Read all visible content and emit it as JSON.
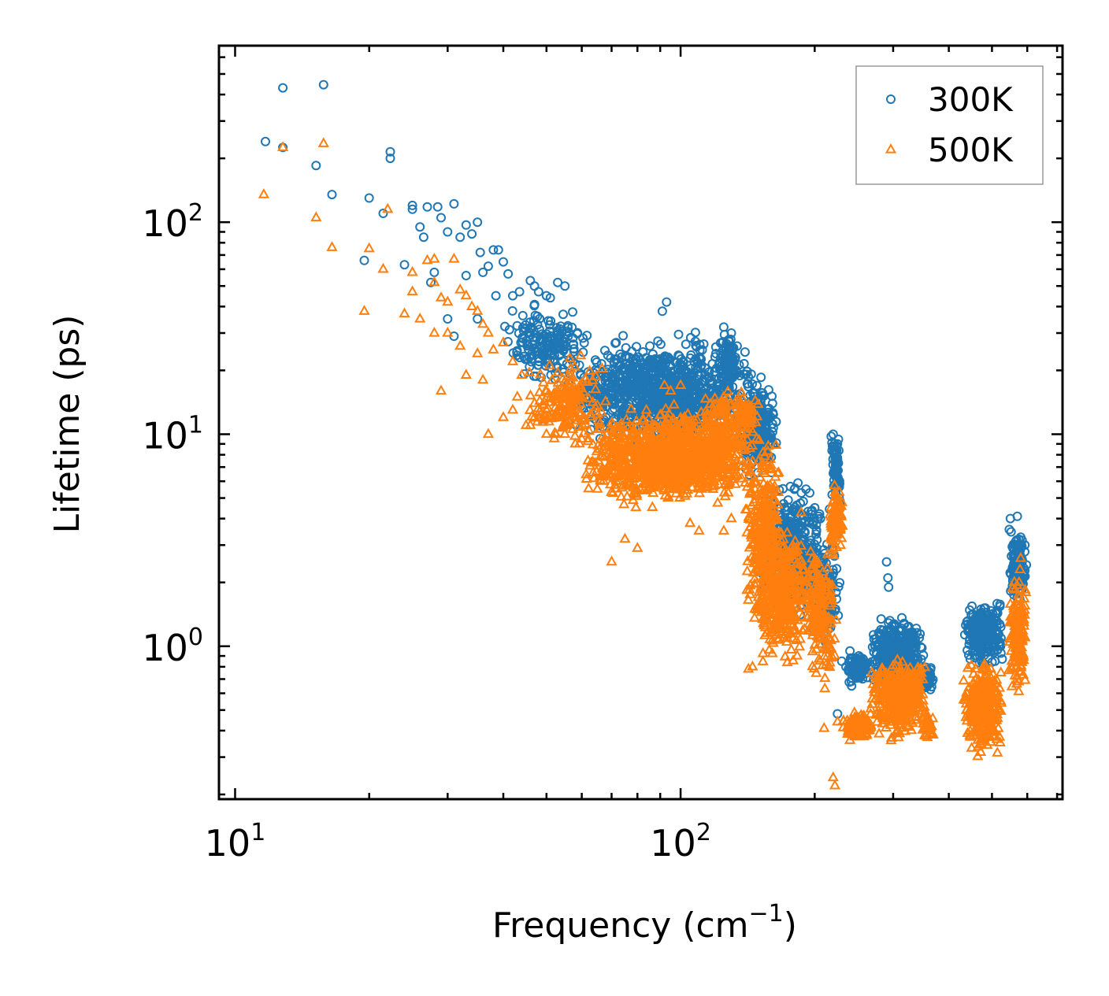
{
  "chart_data": {
    "type": "scatter",
    "title": "",
    "xlabel": "Frequency (cm",
    "xlabel_sup": "−1",
    "xlabel_end": ")",
    "ylabel": "Lifetime (ps)",
    "xscale": "log",
    "yscale": "log",
    "xlim": [
      9.2,
      720
    ],
    "ylim": [
      0.19,
      680
    ],
    "x_ticks": [
      {
        "value": 10,
        "base": "10",
        "exp": "1"
      },
      {
        "value": 100,
        "base": "10",
        "exp": "2"
      }
    ],
    "y_ticks": [
      {
        "value": 1,
        "base": "10",
        "exp": "0"
      },
      {
        "value": 10,
        "base": "10",
        "exp": "1"
      },
      {
        "value": 100,
        "base": "10",
        "exp": "2"
      }
    ],
    "legend_position": "top-right",
    "series": [
      {
        "name": "300K",
        "marker": "circle",
        "color": "#1f77b4",
        "outliers": [
          [
            12.8,
            430
          ],
          [
            15.8,
            445
          ],
          [
            11.7,
            240
          ],
          [
            12.8,
            225
          ],
          [
            22.3,
            215
          ],
          [
            22.3,
            200
          ],
          [
            15.2,
            185
          ],
          [
            16.5,
            135
          ],
          [
            20,
            130
          ],
          [
            21.5,
            110
          ],
          [
            25,
            120
          ],
          [
            25,
            115
          ],
          [
            27,
            118
          ],
          [
            28.5,
            118
          ],
          [
            31,
            122
          ],
          [
            35,
            100
          ],
          [
            29,
            105
          ],
          [
            33,
            97
          ],
          [
            30,
            90
          ],
          [
            32,
            85
          ],
          [
            34,
            88
          ],
          [
            26,
            95
          ],
          [
            26.5,
            85
          ],
          [
            38,
            74
          ],
          [
            39,
            74
          ],
          [
            40,
            65
          ],
          [
            35.5,
            72
          ],
          [
            37,
            62
          ],
          [
            19.5,
            66
          ],
          [
            24,
            63
          ],
          [
            28,
            58
          ],
          [
            36,
            58
          ],
          [
            33,
            56
          ],
          [
            46,
            53
          ],
          [
            47,
            50
          ],
          [
            41,
            57
          ],
          [
            27.5,
            52
          ],
          [
            42,
            45
          ],
          [
            43.5,
            47
          ],
          [
            48,
            47
          ],
          [
            50,
            45
          ],
          [
            51,
            44
          ],
          [
            53,
            52
          ],
          [
            55,
            50
          ],
          [
            38.5,
            45
          ],
          [
            31,
            29
          ],
          [
            30,
            35
          ],
          [
            35,
            35
          ],
          [
            93,
            42
          ],
          [
            91,
            38
          ],
          [
            125,
            32
          ],
          [
            130,
            30
          ],
          [
            220,
            10
          ],
          [
            225,
            9
          ],
          [
            160,
            6.6
          ],
          [
            180,
            5.5
          ],
          [
            200,
            4.5
          ],
          [
            206,
            4
          ],
          [
            290,
            2.5
          ],
          [
            292,
            2.1
          ],
          [
            293,
            1.9
          ],
          [
            550,
            4
          ],
          [
            570,
            4.1
          ],
          [
            240,
            0.95
          ],
          [
            230,
            0.85
          ],
          [
            225,
            0.48
          ],
          [
            235,
            0.8
          ],
          [
            242,
            0.65
          ]
        ],
        "clusters": [
          {
            "x": [
              40,
              62
            ],
            "y": [
              15,
              45
            ],
            "n": 180
          },
          {
            "x": [
              55,
              150
            ],
            "y": [
              8,
              32
            ],
            "n": 950
          },
          {
            "x": [
              120,
              135
            ],
            "y": [
              15,
              33
            ],
            "n": 80
          },
          {
            "x": [
              135,
              165
            ],
            "y": [
              6,
              20
            ],
            "n": 220
          },
          {
            "x": [
              150,
              210
            ],
            "y": [
              1.2,
              6.5
            ],
            "n": 420
          },
          {
            "x": [
              195,
              228
            ],
            "y": [
              0.9,
              3.5
            ],
            "n": 130
          },
          {
            "x": [
              215,
              230
            ],
            "y": [
              4,
              11
            ],
            "n": 60
          },
          {
            "x": [
              235,
              265
            ],
            "y": [
              0.65,
              0.95
            ],
            "n": 110
          },
          {
            "x": [
              265,
              355
            ],
            "y": [
              0.6,
              1.45
            ],
            "n": 380
          },
          {
            "x": [
              345,
              370
            ],
            "y": [
              0.6,
              0.85
            ],
            "n": 70
          },
          {
            "x": [
              430,
              530
            ],
            "y": [
              0.75,
              1.75
            ],
            "n": 280
          },
          {
            "x": [
              545,
              600
            ],
            "y": [
              1.5,
              4.0
            ],
            "n": 140
          }
        ]
      },
      {
        "name": "500K",
        "marker": "triangle",
        "color": "#ff7f0e",
        "outliers": [
          [
            11.6,
            135
          ],
          [
            12.8,
            225
          ],
          [
            15.2,
            105
          ],
          [
            15.8,
            235
          ],
          [
            16.5,
            76
          ],
          [
            20,
            75
          ],
          [
            21.5,
            60
          ],
          [
            22,
            115
          ],
          [
            19.5,
            38
          ],
          [
            25,
            58
          ],
          [
            25,
            47
          ],
          [
            26,
            35
          ],
          [
            24,
            37
          ],
          [
            27,
            66
          ],
          [
            28,
            67
          ],
          [
            28,
            52
          ],
          [
            29,
            44
          ],
          [
            30,
            42
          ],
          [
            31,
            67
          ],
          [
            32,
            48
          ],
          [
            33,
            45
          ],
          [
            34,
            40
          ],
          [
            35,
            38
          ],
          [
            36,
            33
          ],
          [
            37,
            30
          ],
          [
            29,
            16
          ],
          [
            33,
            19
          ],
          [
            36,
            18
          ],
          [
            37,
            10
          ],
          [
            40,
            12
          ],
          [
            42,
            13
          ],
          [
            43,
            15
          ],
          [
            45,
            11
          ],
          [
            46,
            11
          ],
          [
            48,
            12
          ],
          [
            38,
            25
          ],
          [
            40,
            27
          ],
          [
            42,
            22
          ],
          [
            44,
            19
          ],
          [
            47,
            14
          ],
          [
            50,
            10
          ],
          [
            52,
            12
          ],
          [
            55,
            10
          ],
          [
            58,
            9
          ],
          [
            60,
            9.5
          ],
          [
            32,
            26
          ],
          [
            35,
            24
          ],
          [
            28,
            30
          ],
          [
            30,
            30
          ],
          [
            100,
            17
          ],
          [
            92,
            17
          ],
          [
            95,
            16
          ],
          [
            110,
            3.5
          ],
          [
            105,
            3.8
          ],
          [
            80,
            2.9
          ],
          [
            75,
            3.2
          ],
          [
            70,
            2.5
          ],
          [
            125,
            3.5
          ],
          [
            130,
            4
          ],
          [
            140,
            4.4
          ],
          [
            142,
            0.78
          ],
          [
            145,
            0.8
          ],
          [
            210,
            0.41
          ],
          [
            220,
            0.24
          ],
          [
            222,
            0.22
          ],
          [
            225,
            0.44
          ],
          [
            240,
            0.36
          ],
          [
            243,
            0.43
          ],
          [
            580,
            2.6
          ],
          [
            578,
            2.3
          ],
          [
            575,
            2.0
          ]
        ],
        "clusters": [
          {
            "x": [
              45,
              70
            ],
            "y": [
              8,
              25
            ],
            "n": 180
          },
          {
            "x": [
              60,
              150
            ],
            "y": [
              4.2,
              14
            ],
            "n": 1150
          },
          {
            "x": [
              110,
              140
            ],
            "y": [
              7,
              17
            ],
            "n": 120
          },
          {
            "x": [
              130,
              150
            ],
            "y": [
              9,
              17
            ],
            "n": 60
          },
          {
            "x": [
              140,
              170
            ],
            "y": [
              1.5,
              10
            ],
            "n": 250
          },
          {
            "x": [
              140,
              200
            ],
            "y": [
              0.75,
              4.5
            ],
            "n": 430
          },
          {
            "x": [
              190,
              225
            ],
            "y": [
              0.6,
              3.5
            ],
            "n": 170
          },
          {
            "x": [
              215,
              232
            ],
            "y": [
              2.5,
              6.5
            ],
            "n": 80
          },
          {
            "x": [
              230,
              270
            ],
            "y": [
              0.35,
              0.5
            ],
            "n": 120
          },
          {
            "x": [
              265,
              360
            ],
            "y": [
              0.35,
              0.95
            ],
            "n": 420
          },
          {
            "x": [
              345,
              370
            ],
            "y": [
              0.35,
              0.5
            ],
            "n": 60
          },
          {
            "x": [
              430,
              530
            ],
            "y": [
              0.28,
              0.95
            ],
            "n": 320
          },
          {
            "x": [
              545,
              600
            ],
            "y": [
              0.55,
              2.3
            ],
            "n": 150
          }
        ]
      }
    ]
  }
}
